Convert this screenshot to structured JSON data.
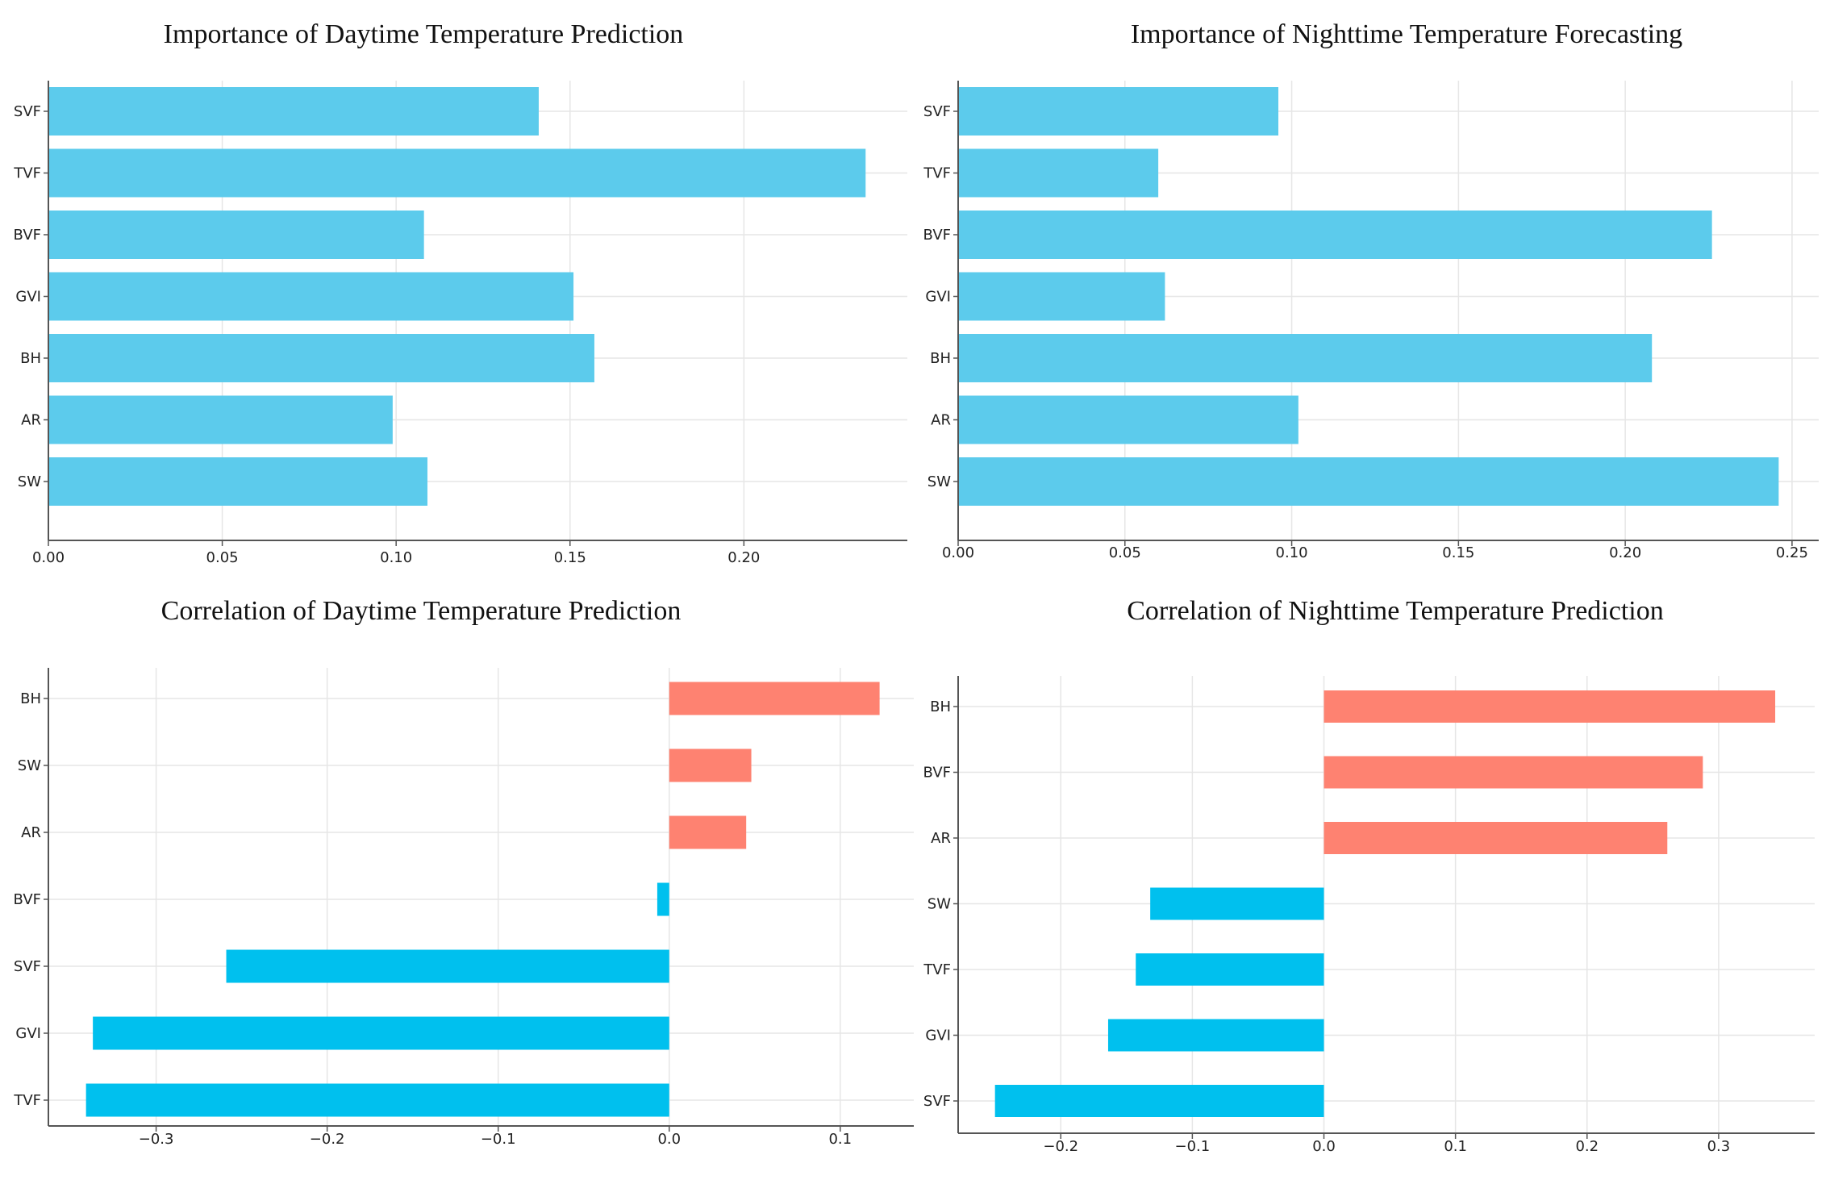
{
  "colors": {
    "importance": "#5ccbec",
    "negative": "#00c0ee",
    "positive": "#fe8271"
  },
  "chart_data": [
    {
      "id": "day-importance",
      "type": "bar",
      "orientation": "horizontal",
      "title": "Importance of Daytime Temperature Prediction",
      "xlabel": "",
      "ylabel": "",
      "categories": [
        "SVF",
        "TVF",
        "BVF",
        "GVI",
        "BH",
        "AR",
        "SW"
      ],
      "values": [
        0.141,
        0.235,
        0.108,
        0.151,
        0.157,
        0.099,
        0.109
      ],
      "xlim": [
        0,
        0.247
      ],
      "xticks": [
        0.0,
        0.05,
        0.1,
        0.15,
        0.2
      ],
      "xtick_labels": [
        "0.00",
        "0.05",
        "0.10",
        "0.15",
        "0.20"
      ],
      "grid": true
    },
    {
      "id": "night-importance",
      "type": "bar",
      "orientation": "horizontal",
      "title": "Importance of Nighttime Temperature Forecasting",
      "xlabel": "",
      "ylabel": "",
      "categories": [
        "SVF",
        "TVF",
        "BVF",
        "GVI",
        "BH",
        "AR",
        "SW"
      ],
      "values": [
        0.096,
        0.06,
        0.226,
        0.062,
        0.208,
        0.102,
        0.246
      ],
      "xlim": [
        0,
        0.258
      ],
      "xticks": [
        0.0,
        0.05,
        0.1,
        0.15,
        0.2,
        0.25
      ],
      "xtick_labels": [
        "0.00",
        "0.05",
        "0.10",
        "0.15",
        "0.20",
        "0.25"
      ],
      "grid": true
    },
    {
      "id": "day-correlation",
      "type": "bar",
      "orientation": "horizontal",
      "title": "Correlation of Daytime Temperature Prediction",
      "xlabel": "",
      "ylabel": "",
      "categories": [
        "BH",
        "SW",
        "AR",
        "BVF",
        "SVF",
        "GVI",
        "TVF"
      ],
      "values": [
        0.123,
        0.048,
        0.045,
        -0.007,
        -0.259,
        -0.337,
        -0.341
      ],
      "xlim": [
        -0.363,
        0.143
      ],
      "xticks": [
        -0.3,
        -0.2,
        -0.1,
        0.0,
        0.1
      ],
      "xtick_labels": [
        "−0.3",
        "−0.2",
        "−0.1",
        "0.0",
        "0.1"
      ],
      "grid": true
    },
    {
      "id": "night-correlation",
      "type": "bar",
      "orientation": "horizontal",
      "title": "Correlation of Nighttime Temperature Prediction",
      "xlabel": "",
      "ylabel": "",
      "categories": [
        "BH",
        "BVF",
        "AR",
        "SW",
        "TVF",
        "GVI",
        "SVF"
      ],
      "values": [
        0.343,
        0.288,
        0.261,
        -0.132,
        -0.143,
        -0.164,
        -0.25
      ],
      "xlim": [
        -0.278,
        0.373
      ],
      "xticks": [
        -0.2,
        -0.1,
        0.0,
        0.1,
        0.2,
        0.3
      ],
      "xtick_labels": [
        "−0.2",
        "−0.1",
        "0.0",
        "0.1",
        "0.2",
        "0.3"
      ],
      "grid": true
    }
  ]
}
